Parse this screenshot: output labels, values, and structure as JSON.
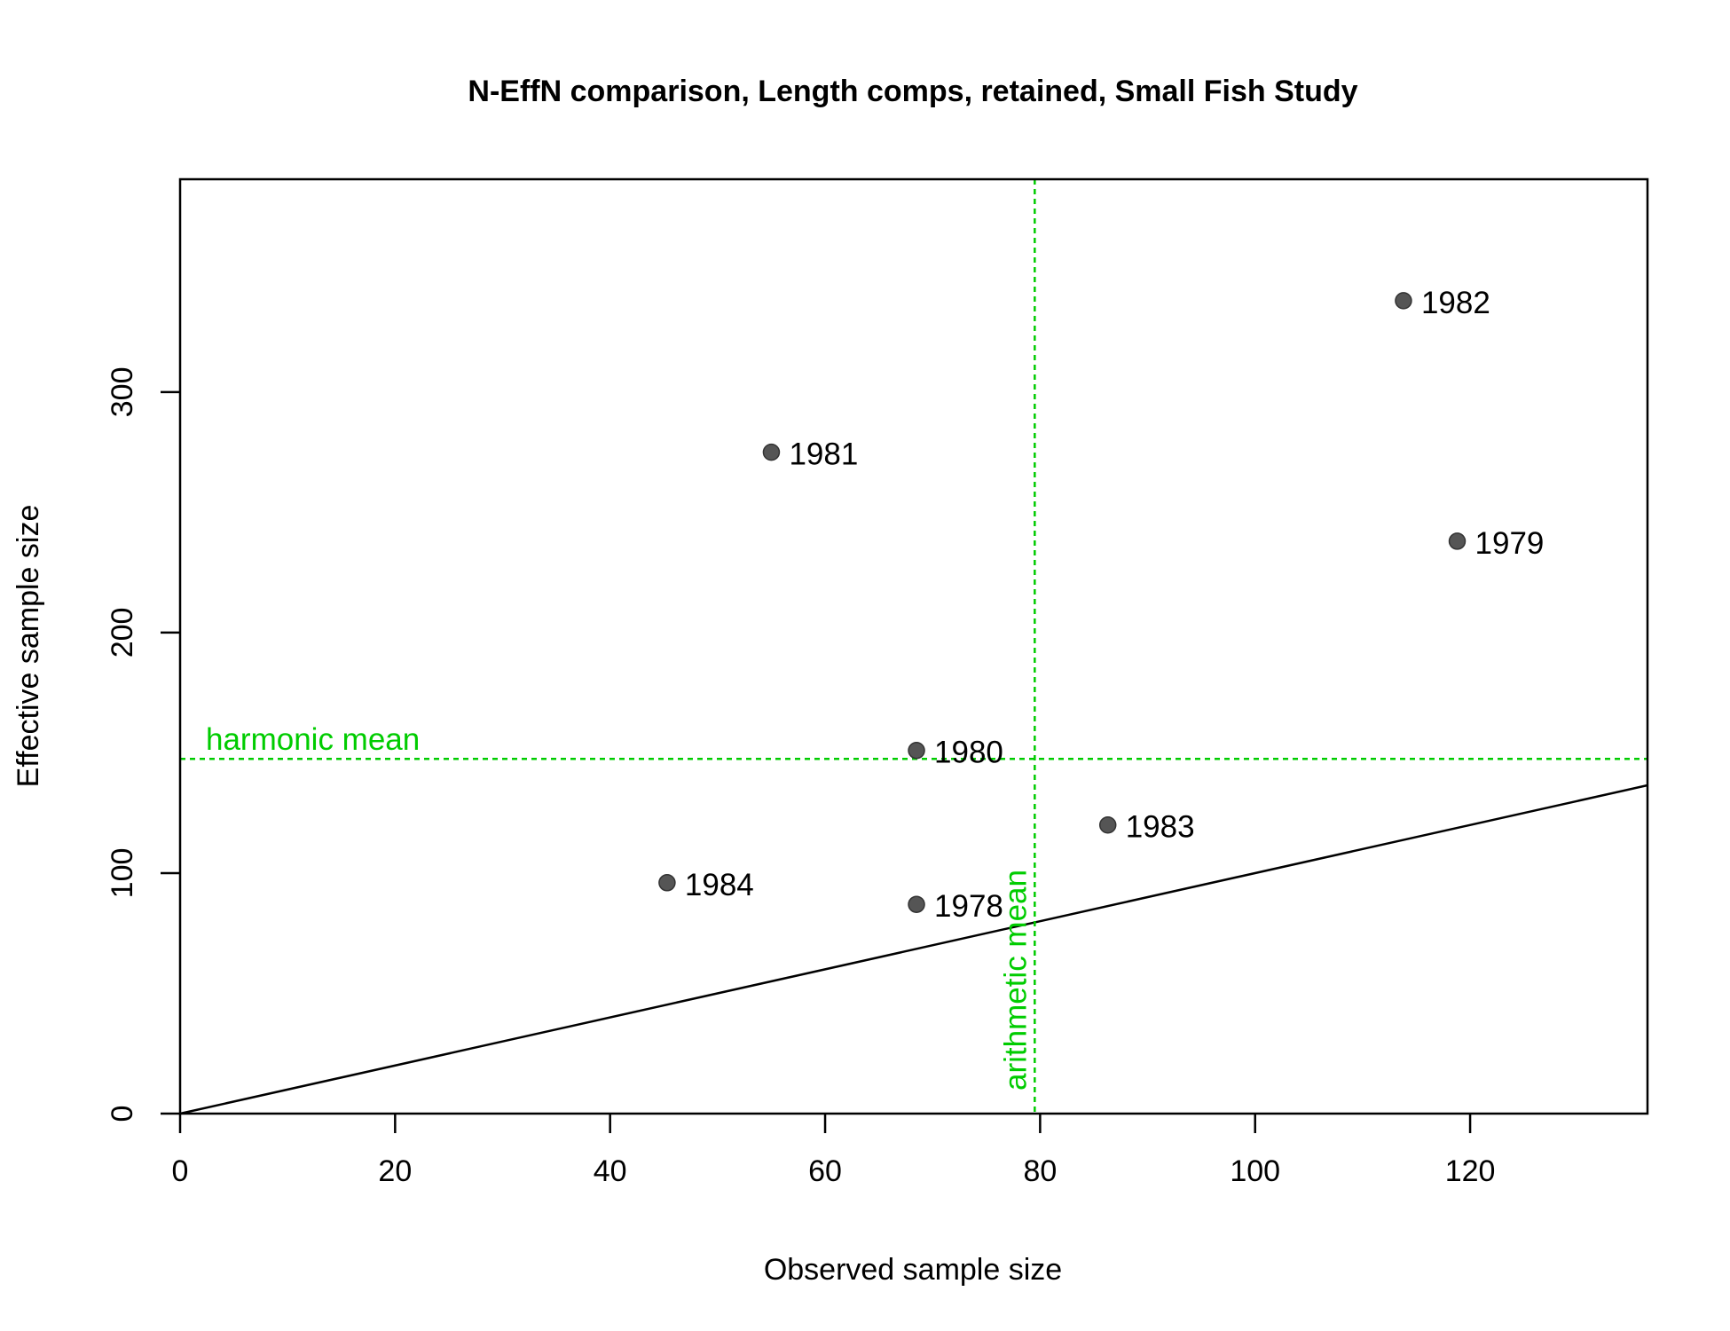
{
  "chart_data": {
    "type": "scatter",
    "title": "N-EffN comparison, Length comps, retained, Small Fish Study",
    "xlabel": "Observed sample size",
    "ylabel": "Effective sample size",
    "xlim": [
      0,
      136.5
    ],
    "ylim": [
      0,
      388.5
    ],
    "x_ticks": [
      0,
      20,
      40,
      60,
      80,
      100,
      120
    ],
    "y_ticks": [
      0,
      100,
      200,
      300
    ],
    "points": [
      {
        "label": "1978",
        "x": 68.5,
        "y": 87
      },
      {
        "label": "1979",
        "x": 118.8,
        "y": 238
      },
      {
        "label": "1980",
        "x": 68.5,
        "y": 151
      },
      {
        "label": "1981",
        "x": 55.0,
        "y": 275
      },
      {
        "label": "1982",
        "x": 113.8,
        "y": 338
      },
      {
        "label": "1983",
        "x": 86.3,
        "y": 120
      },
      {
        "label": "1984",
        "x": 45.3,
        "y": 96
      }
    ],
    "reference_line": {
      "type": "1:1",
      "color": "#000000"
    },
    "harmonic_mean": {
      "label": "harmonic mean",
      "value": 147.5,
      "color": "#00cc00"
    },
    "arithmetic_mean": {
      "label": "arithmetic mean",
      "value": 79.5,
      "color": "#00cc00"
    },
    "point_color": "#555555",
    "grid": false,
    "legend": "none"
  }
}
